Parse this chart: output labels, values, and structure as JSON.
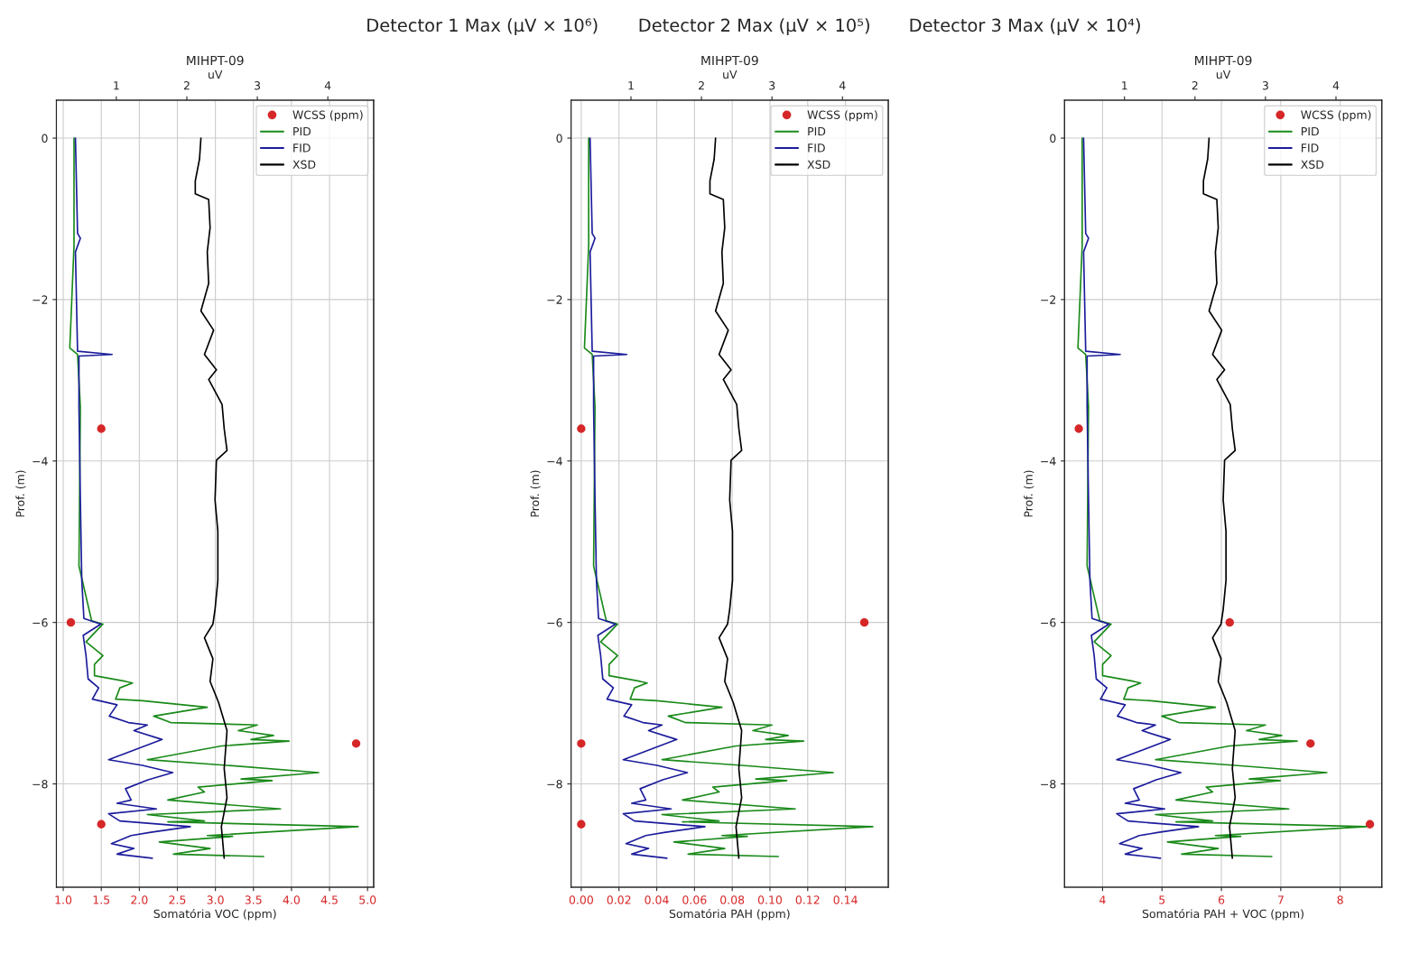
{
  "chart_data": [
    {
      "type": "line",
      "title": "Detector 1 Max (μV × 10⁶)",
      "subtitle": "MIHPT-09",
      "xlabel": "Somatória VOC (ppm)",
      "x2label": "uV",
      "ylabel": "Prof. (m)",
      "xlim": [
        0.91,
        5.08
      ],
      "xticks": [
        {
          "value": 1,
          "label": "1.0"
        },
        1.5,
        {
          "value": 2,
          "label": "2.0"
        },
        2.5,
        {
          "value": 3,
          "label": "3.0"
        },
        3.5,
        {
          "value": 4,
          "label": "4.0"
        },
        4.5,
        {
          "value": 5,
          "label": "5.0"
        }
      ],
      "x2lim": [
        0.15,
        4.65
      ],
      "x2ticks": [
        1,
        2,
        3,
        4
      ],
      "ylim": [
        -9.28,
        0.47
      ],
      "yticks": [
        0,
        {
          "value": -2,
          "label": "−2"
        },
        {
          "value": -4,
          "label": "−4"
        },
        {
          "value": -6,
          "label": "−6"
        },
        {
          "value": -8,
          "label": "−8"
        }
      ],
      "grid": true,
      "legend": "top right",
      "series": [
        {
          "name": "WCSS (ppm)",
          "type": "scatter",
          "marker": "circle",
          "color": "#d62728",
          "x": [
            1.5,
            1.1,
            4.85,
            1.5
          ],
          "values": [
            -3.6,
            -6.0,
            -7.5,
            -8.5
          ]
        },
        {
          "name": "PID",
          "axis": "x2",
          "color": "#1a8a1a",
          "x": [
            0.4,
            0.4,
            0.34,
            0.45,
            0.49,
            0.47,
            0.65,
            0.81,
            0.57,
            0.81,
            0.69,
            0.69,
            1.13,
            1.23,
            1.05,
            0.99,
            1.37,
            2.29,
            1.53,
            1.77,
            3.0,
            2.73,
            3.23,
            2.91,
            3.45,
            2.49,
            1.44,
            2.57,
            3.87,
            2.77,
            3.21,
            2.16,
            2.25,
            1.73,
            3.33,
            1.44,
            2.25,
            1.73,
            4.43,
            2.29,
            2.65,
            1.61,
            2.33,
            1.81,
            3.09
          ],
          "values": [
            0,
            -1.33,
            -2.6,
            -2.68,
            -3.33,
            -5.3,
            -5.98,
            -6.02,
            -6.24,
            -6.41,
            -6.52,
            -6.66,
            -6.73,
            -6.75,
            -6.81,
            -6.95,
            -6.97,
            -7.05,
            -7.16,
            -7.24,
            -7.27,
            -7.34,
            -7.4,
            -7.45,
            -7.47,
            -7.53,
            -7.7,
            -7.77,
            -7.86,
            -7.94,
            -7.96,
            -8.04,
            -8.1,
            -8.2,
            -8.31,
            -8.38,
            -8.46,
            -8.47,
            -8.53,
            -8.64,
            -8.65,
            -8.72,
            -8.8,
            -8.87,
            -8.9
          ]
        },
        {
          "name": "FID",
          "axis": "x2",
          "color": "#1c1c9c",
          "x": [
            0.42,
            0.45,
            0.49,
            0.42,
            0.45,
            0.94,
            0.47,
            0.47,
            0.49,
            0.51,
            0.54,
            0.78,
            0.53,
            0.57,
            0.6,
            0.75,
            0.66,
            1.01,
            0.9,
            1.17,
            1.44,
            1.25,
            1.65,
            0.89,
            1.37,
            1.8,
            1.45,
            1.13,
            1.21,
            1.01,
            1.57,
            0.89,
            1.05,
            2.05,
            1.49,
            1.21,
            0.93,
            1.25,
            1.01,
            1.51
          ],
          "values": [
            0,
            -1.18,
            -1.24,
            -1.41,
            -2.64,
            -2.68,
            -2.7,
            -3.33,
            -4.48,
            -5.48,
            -5.95,
            -6.02,
            -6.16,
            -6.41,
            -6.7,
            -6.81,
            -6.95,
            -7.02,
            -7.16,
            -7.24,
            -7.27,
            -7.34,
            -7.45,
            -7.7,
            -7.77,
            -7.86,
            -7.95,
            -8.06,
            -8.2,
            -8.24,
            -8.31,
            -8.37,
            -8.46,
            -8.53,
            -8.6,
            -8.64,
            -8.74,
            -8.8,
            -8.87,
            -8.92
          ]
        },
        {
          "name": "XSD",
          "axis": "x2",
          "color": "#000000",
          "x": [
            2.2,
            2.18,
            2.12,
            2.12,
            2.31,
            2.33,
            2.29,
            2.31,
            2.2,
            2.38,
            2.25,
            2.42,
            2.31,
            2.5,
            2.53,
            2.57,
            2.42,
            2.4,
            2.44,
            2.44,
            2.4,
            2.37,
            2.25,
            2.37,
            2.33,
            2.45,
            2.57,
            2.53,
            2.57,
            2.49,
            2.53
          ],
          "values": [
            0,
            -0.26,
            -0.53,
            -0.69,
            -0.76,
            -1.11,
            -1.41,
            -1.8,
            -2.14,
            -2.38,
            -2.68,
            -2.87,
            -2.99,
            -3.3,
            -3.6,
            -3.87,
            -3.99,
            -4.48,
            -4.87,
            -5.48,
            -5.84,
            -6.02,
            -6.19,
            -6.45,
            -6.73,
            -6.99,
            -7.34,
            -7.81,
            -8.17,
            -8.53,
            -8.92
          ]
        }
      ]
    },
    {
      "type": "line",
      "title": "Detector 2 Max (μV × 10⁵)",
      "subtitle": "MIHPT-09",
      "xlabel": "Somatória PAH (ppm)",
      "x2label": "uV",
      "ylabel": "Prof. (m)",
      "xlim": [
        -0.0054,
        0.1627
      ],
      "xticks": [
        {
          "value": 0,
          "label": "0.00"
        },
        0.02,
        0.04,
        0.06,
        0.08,
        {
          "value": 0.1,
          "label": "0.10"
        },
        0.12,
        0.14
      ],
      "x2lim": [
        0.15,
        4.65
      ],
      "x2ticks": [
        1,
        2,
        3,
        4
      ],
      "ylim": [
        -9.28,
        0.47
      ],
      "yticks": [
        0,
        {
          "value": -2,
          "label": "−2"
        },
        {
          "value": -4,
          "label": "−4"
        },
        {
          "value": -6,
          "label": "−6"
        },
        {
          "value": -8,
          "label": "−8"
        }
      ],
      "grid": true,
      "legend": "top right",
      "series": [
        {
          "name": "WCSS (ppm)",
          "type": "scatter",
          "marker": "circle",
          "color": "#d62728",
          "x": [
            0.0,
            0.15,
            0.0,
            0.0
          ],
          "values": [
            -3.6,
            -6.0,
            -7.5,
            -8.5
          ]
        },
        {
          "name": "PID",
          "axis": "x2",
          "color": "#1a8a1a",
          "x": [
            0.4,
            0.4,
            0.34,
            0.45,
            0.49,
            0.47,
            0.65,
            0.81,
            0.57,
            0.81,
            0.69,
            0.69,
            1.13,
            1.23,
            1.05,
            0.99,
            1.37,
            2.29,
            1.53,
            1.77,
            3.0,
            2.73,
            3.23,
            2.91,
            3.45,
            2.49,
            1.44,
            2.57,
            3.87,
            2.77,
            3.21,
            2.16,
            2.25,
            1.73,
            3.33,
            1.44,
            2.25,
            1.73,
            4.43,
            2.29,
            2.65,
            1.61,
            2.33,
            1.81,
            3.09
          ],
          "values": [
            0,
            -1.33,
            -2.6,
            -2.68,
            -3.33,
            -5.3,
            -5.98,
            -6.02,
            -6.24,
            -6.41,
            -6.52,
            -6.66,
            -6.73,
            -6.75,
            -6.81,
            -6.95,
            -6.97,
            -7.05,
            -7.16,
            -7.24,
            -7.27,
            -7.34,
            -7.4,
            -7.45,
            -7.47,
            -7.53,
            -7.7,
            -7.77,
            -7.86,
            -7.94,
            -7.96,
            -8.04,
            -8.1,
            -8.2,
            -8.31,
            -8.38,
            -8.46,
            -8.47,
            -8.53,
            -8.64,
            -8.65,
            -8.72,
            -8.8,
            -8.87,
            -8.9
          ]
        },
        {
          "name": "FID",
          "axis": "x2",
          "color": "#1c1c9c",
          "x": [
            0.42,
            0.45,
            0.49,
            0.42,
            0.45,
            0.94,
            0.47,
            0.47,
            0.49,
            0.51,
            0.54,
            0.78,
            0.53,
            0.57,
            0.6,
            0.75,
            0.66,
            1.01,
            0.9,
            1.17,
            1.44,
            1.25,
            1.65,
            0.89,
            1.37,
            1.8,
            1.45,
            1.13,
            1.21,
            1.01,
            1.57,
            0.89,
            1.05,
            2.05,
            1.49,
            1.21,
            0.93,
            1.25,
            1.01,
            1.51
          ],
          "values": [
            0,
            -1.18,
            -1.24,
            -1.41,
            -2.64,
            -2.68,
            -2.7,
            -3.33,
            -4.48,
            -5.48,
            -5.95,
            -6.02,
            -6.16,
            -6.41,
            -6.7,
            -6.81,
            -6.95,
            -7.02,
            -7.16,
            -7.24,
            -7.27,
            -7.34,
            -7.45,
            -7.7,
            -7.77,
            -7.86,
            -7.95,
            -8.06,
            -8.2,
            -8.24,
            -8.31,
            -8.37,
            -8.46,
            -8.53,
            -8.6,
            -8.64,
            -8.74,
            -8.8,
            -8.87,
            -8.92
          ]
        },
        {
          "name": "XSD",
          "axis": "x2",
          "color": "#000000",
          "x": [
            2.2,
            2.18,
            2.12,
            2.12,
            2.31,
            2.33,
            2.29,
            2.31,
            2.2,
            2.38,
            2.25,
            2.42,
            2.31,
            2.5,
            2.53,
            2.57,
            2.42,
            2.4,
            2.44,
            2.44,
            2.4,
            2.37,
            2.25,
            2.37,
            2.33,
            2.45,
            2.57,
            2.53,
            2.57,
            2.49,
            2.53
          ],
          "values": [
            0,
            -0.26,
            -0.53,
            -0.69,
            -0.76,
            -1.11,
            -1.41,
            -1.8,
            -2.14,
            -2.38,
            -2.68,
            -2.87,
            -2.99,
            -3.3,
            -3.6,
            -3.87,
            -3.99,
            -4.48,
            -4.87,
            -5.48,
            -5.84,
            -6.02,
            -6.19,
            -6.45,
            -6.73,
            -6.99,
            -7.34,
            -7.81,
            -8.17,
            -8.53,
            -8.92
          ]
        }
      ]
    },
    {
      "type": "line",
      "title": "Detector 3 Max (μV × 10⁴)",
      "subtitle": "MIHPT-09",
      "xlabel": "Somatória PAH + VOC (ppm)",
      "x2label": "uV",
      "ylabel": "Prof. (m)",
      "xlim": [
        3.36,
        8.7
      ],
      "xticks": [
        4,
        5,
        6,
        7,
        8
      ],
      "x2lim": [
        0.15,
        4.65
      ],
      "x2ticks": [
        1,
        2,
        3,
        4
      ],
      "ylim": [
        -9.28,
        0.47
      ],
      "yticks": [
        0,
        {
          "value": -2,
          "label": "−2"
        },
        {
          "value": -4,
          "label": "−4"
        },
        {
          "value": -6,
          "label": "−6"
        },
        {
          "value": -8,
          "label": "−8"
        }
      ],
      "grid": true,
      "legend": "top right",
      "series": [
        {
          "name": "WCSS (ppm)",
          "type": "scatter",
          "marker": "circle",
          "color": "#d62728",
          "x": [
            3.6,
            6.14,
            7.5,
            8.5
          ],
          "values": [
            -3.6,
            -6.0,
            -7.5,
            -8.5
          ]
        },
        {
          "name": "PID",
          "axis": "x2",
          "color": "#1a8a1a",
          "x": [
            0.4,
            0.4,
            0.34,
            0.45,
            0.49,
            0.47,
            0.65,
            0.81,
            0.57,
            0.81,
            0.69,
            0.69,
            1.13,
            1.23,
            1.05,
            0.99,
            1.37,
            2.29,
            1.53,
            1.77,
            3.0,
            2.73,
            3.23,
            2.91,
            3.45,
            2.49,
            1.44,
            2.57,
            3.87,
            2.77,
            3.21,
            2.16,
            2.25,
            1.73,
            3.33,
            1.44,
            2.25,
            1.73,
            4.43,
            2.29,
            2.65,
            1.61,
            2.33,
            1.81,
            3.09
          ],
          "values": [
            0,
            -1.33,
            -2.6,
            -2.68,
            -3.33,
            -5.3,
            -5.98,
            -6.02,
            -6.24,
            -6.41,
            -6.52,
            -6.66,
            -6.73,
            -6.75,
            -6.81,
            -6.95,
            -6.97,
            -7.05,
            -7.16,
            -7.24,
            -7.27,
            -7.34,
            -7.4,
            -7.45,
            -7.47,
            -7.53,
            -7.7,
            -7.77,
            -7.86,
            -7.94,
            -7.96,
            -8.04,
            -8.1,
            -8.2,
            -8.31,
            -8.38,
            -8.46,
            -8.47,
            -8.53,
            -8.64,
            -8.65,
            -8.72,
            -8.8,
            -8.87,
            -8.9
          ]
        },
        {
          "name": "FID",
          "axis": "x2",
          "color": "#1c1c9c",
          "x": [
            0.42,
            0.45,
            0.49,
            0.42,
            0.45,
            0.94,
            0.47,
            0.47,
            0.49,
            0.51,
            0.54,
            0.78,
            0.53,
            0.57,
            0.6,
            0.75,
            0.66,
            1.01,
            0.9,
            1.17,
            1.44,
            1.25,
            1.65,
            0.89,
            1.37,
            1.8,
            1.45,
            1.13,
            1.21,
            1.01,
            1.57,
            0.89,
            1.05,
            2.05,
            1.49,
            1.21,
            0.93,
            1.25,
            1.01,
            1.51
          ],
          "values": [
            0,
            -1.18,
            -1.24,
            -1.41,
            -2.64,
            -2.68,
            -2.7,
            -3.33,
            -4.48,
            -5.48,
            -5.95,
            -6.02,
            -6.16,
            -6.41,
            -6.7,
            -6.81,
            -6.95,
            -7.02,
            -7.16,
            -7.24,
            -7.27,
            -7.34,
            -7.45,
            -7.7,
            -7.77,
            -7.86,
            -7.95,
            -8.06,
            -8.2,
            -8.24,
            -8.31,
            -8.37,
            -8.46,
            -8.53,
            -8.6,
            -8.64,
            -8.74,
            -8.8,
            -8.87,
            -8.92
          ]
        },
        {
          "name": "XSD",
          "axis": "x2",
          "color": "#000000",
          "x": [
            2.2,
            2.18,
            2.12,
            2.12,
            2.31,
            2.33,
            2.29,
            2.31,
            2.2,
            2.38,
            2.25,
            2.42,
            2.31,
            2.5,
            2.53,
            2.57,
            2.42,
            2.4,
            2.44,
            2.44,
            2.4,
            2.37,
            2.25,
            2.37,
            2.33,
            2.45,
            2.57,
            2.53,
            2.57,
            2.49,
            2.53
          ],
          "values": [
            0,
            -0.26,
            -0.53,
            -0.69,
            -0.76,
            -1.11,
            -1.41,
            -1.8,
            -2.14,
            -2.38,
            -2.68,
            -2.87,
            -2.99,
            -3.3,
            -3.6,
            -3.87,
            -3.99,
            -4.48,
            -4.87,
            -5.48,
            -5.84,
            -6.02,
            -6.19,
            -6.45,
            -6.73,
            -6.99,
            -7.34,
            -7.81,
            -8.17,
            -8.53,
            -8.92
          ]
        }
      ]
    }
  ]
}
